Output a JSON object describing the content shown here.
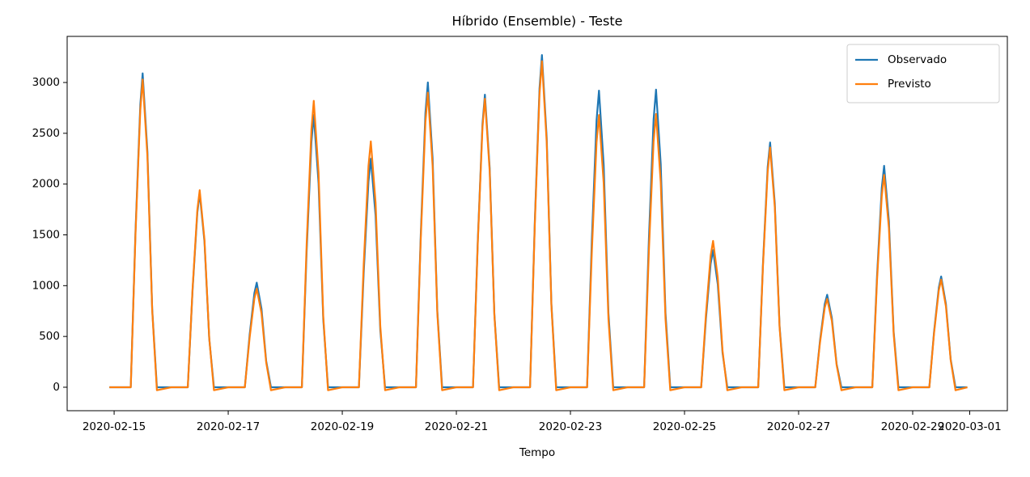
{
  "chart_data": {
    "type": "line",
    "title": "Híbrido (Ensemble) - Teste",
    "xlabel": "Tempo",
    "x": [
      "2020-02-14 22:00",
      "2020-02-15 00:00",
      "2020-02-15 07:00",
      "2020-02-15 09:00",
      "2020-02-15 11:00",
      "2020-02-15 12:00",
      "2020-02-15 14:00",
      "2020-02-15 16:00",
      "2020-02-15 18:00",
      "2020-02-16 00:00",
      "2020-02-16 07:00",
      "2020-02-16 09:00",
      "2020-02-16 11:00",
      "2020-02-16 12:00",
      "2020-02-16 14:00",
      "2020-02-16 16:00",
      "2020-02-16 18:00",
      "2020-02-17 00:00",
      "2020-02-17 07:00",
      "2020-02-17 09:00",
      "2020-02-17 11:00",
      "2020-02-17 12:00",
      "2020-02-17 14:00",
      "2020-02-17 16:00",
      "2020-02-17 18:00",
      "2020-02-18 00:00",
      "2020-02-18 07:00",
      "2020-02-18 09:00",
      "2020-02-18 11:00",
      "2020-02-18 12:00",
      "2020-02-18 14:00",
      "2020-02-18 16:00",
      "2020-02-18 18:00",
      "2020-02-19 00:00",
      "2020-02-19 07:00",
      "2020-02-19 09:00",
      "2020-02-19 11:00",
      "2020-02-19 12:00",
      "2020-02-19 14:00",
      "2020-02-19 16:00",
      "2020-02-19 18:00",
      "2020-02-20 00:00",
      "2020-02-20 07:00",
      "2020-02-20 09:00",
      "2020-02-20 11:00",
      "2020-02-20 12:00",
      "2020-02-20 14:00",
      "2020-02-20 16:00",
      "2020-02-20 18:00",
      "2020-02-21 00:00",
      "2020-02-21 07:00",
      "2020-02-21 09:00",
      "2020-02-21 11:00",
      "2020-02-21 12:00",
      "2020-02-21 14:00",
      "2020-02-21 16:00",
      "2020-02-21 18:00",
      "2020-02-22 00:00",
      "2020-02-22 07:00",
      "2020-02-22 09:00",
      "2020-02-22 11:00",
      "2020-02-22 12:00",
      "2020-02-22 14:00",
      "2020-02-22 16:00",
      "2020-02-22 18:00",
      "2020-02-23 00:00",
      "2020-02-23 07:00",
      "2020-02-23 09:00",
      "2020-02-23 11:00",
      "2020-02-23 12:00",
      "2020-02-23 14:00",
      "2020-02-23 16:00",
      "2020-02-23 18:00",
      "2020-02-24 00:00",
      "2020-02-24 07:00",
      "2020-02-24 09:00",
      "2020-02-24 11:00",
      "2020-02-24 12:00",
      "2020-02-24 14:00",
      "2020-02-24 16:00",
      "2020-02-24 18:00",
      "2020-02-25 00:00",
      "2020-02-25 07:00",
      "2020-02-25 09:00",
      "2020-02-25 11:00",
      "2020-02-25 12:00",
      "2020-02-25 14:00",
      "2020-02-25 16:00",
      "2020-02-25 18:00",
      "2020-02-26 00:00",
      "2020-02-26 07:00",
      "2020-02-26 09:00",
      "2020-02-26 11:00",
      "2020-02-26 12:00",
      "2020-02-26 14:00",
      "2020-02-26 16:00",
      "2020-02-26 18:00",
      "2020-02-27 00:00",
      "2020-02-27 07:00",
      "2020-02-27 09:00",
      "2020-02-27 11:00",
      "2020-02-27 12:00",
      "2020-02-27 14:00",
      "2020-02-27 16:00",
      "2020-02-27 18:00",
      "2020-02-28 00:00",
      "2020-02-28 07:00",
      "2020-02-28 09:00",
      "2020-02-28 11:00",
      "2020-02-28 12:00",
      "2020-02-28 14:00",
      "2020-02-28 16:00",
      "2020-02-28 18:00",
      "2020-02-29 00:00",
      "2020-02-29 07:00",
      "2020-02-29 09:00",
      "2020-02-29 11:00",
      "2020-02-29 12:00",
      "2020-02-29 14:00",
      "2020-02-29 16:00",
      "2020-02-29 18:00",
      "2020-02-29 23:00"
    ],
    "series": [
      {
        "name": "Observado",
        "color": "#1f77b4",
        "values": [
          0,
          0,
          0,
          1545,
          2781,
          3090,
          2318,
          773,
          0,
          0,
          0,
          955,
          1719,
          1910,
          1433,
          478,
          0,
          0,
          0,
          515,
          927,
          1030,
          773,
          258,
          0,
          0,
          0,
          1340,
          2412,
          2680,
          2010,
          670,
          0,
          0,
          0,
          1125,
          2025,
          2250,
          1688,
          563,
          0,
          0,
          0,
          1500,
          2700,
          3000,
          2250,
          750,
          0,
          0,
          0,
          1440,
          2592,
          2880,
          2160,
          720,
          0,
          0,
          0,
          1635,
          2943,
          3270,
          2453,
          818,
          0,
          0,
          0,
          1460,
          2628,
          2920,
          2190,
          730,
          0,
          0,
          0,
          1465,
          2637,
          2930,
          2198,
          733,
          0,
          0,
          0,
          675,
          1215,
          1350,
          1013,
          338,
          0,
          0,
          0,
          1205,
          2169,
          2410,
          1808,
          603,
          0,
          0,
          0,
          455,
          819,
          910,
          683,
          228,
          0,
          0,
          0,
          1090,
          1962,
          2180,
          1635,
          545,
          0,
          0,
          0,
          545,
          981,
          1090,
          818,
          273,
          0,
          0
        ]
      },
      {
        "name": "Previsto",
        "color": "#ff7f0e",
        "values": [
          0,
          0,
          0,
          1515,
          2727,
          3030,
          2273,
          758,
          -30,
          0,
          0,
          970,
          1746,
          1940,
          1455,
          485,
          -30,
          0,
          0,
          485,
          873,
          970,
          728,
          243,
          -30,
          0,
          0,
          1410,
          2538,
          2820,
          2115,
          705,
          -30,
          0,
          0,
          1210,
          2178,
          2420,
          1815,
          605,
          -30,
          0,
          0,
          1450,
          2610,
          2900,
          2175,
          725,
          -30,
          0,
          0,
          1420,
          2556,
          2840,
          2130,
          710,
          -30,
          0,
          0,
          1605,
          2889,
          3210,
          2408,
          803,
          -30,
          0,
          0,
          1340,
          2412,
          2680,
          2010,
          670,
          -30,
          0,
          0,
          1345,
          2421,
          2690,
          2018,
          673,
          -30,
          0,
          0,
          720,
          1296,
          1440,
          1080,
          360,
          -30,
          0,
          0,
          1180,
          2124,
          2360,
          1770,
          590,
          -30,
          0,
          0,
          435,
          783,
          870,
          653,
          218,
          -30,
          0,
          0,
          1045,
          1881,
          2090,
          1568,
          523,
          -30,
          0,
          0,
          530,
          954,
          1060,
          795,
          265,
          -30,
          0
        ]
      }
    ],
    "xlim": [
      "2020-02-14 04:14",
      "2020-03-01 15:50"
    ],
    "xticks": [
      "2020-02-15",
      "2020-02-17",
      "2020-02-19",
      "2020-02-21",
      "2020-02-23",
      "2020-02-25",
      "2020-02-27",
      "2020-02-29",
      "2020-03-01"
    ],
    "ylim": [
      -231,
      3454
    ],
    "yticks": [
      0,
      500,
      1000,
      1500,
      2000,
      2500,
      3000
    ],
    "legend": "upper right"
  }
}
